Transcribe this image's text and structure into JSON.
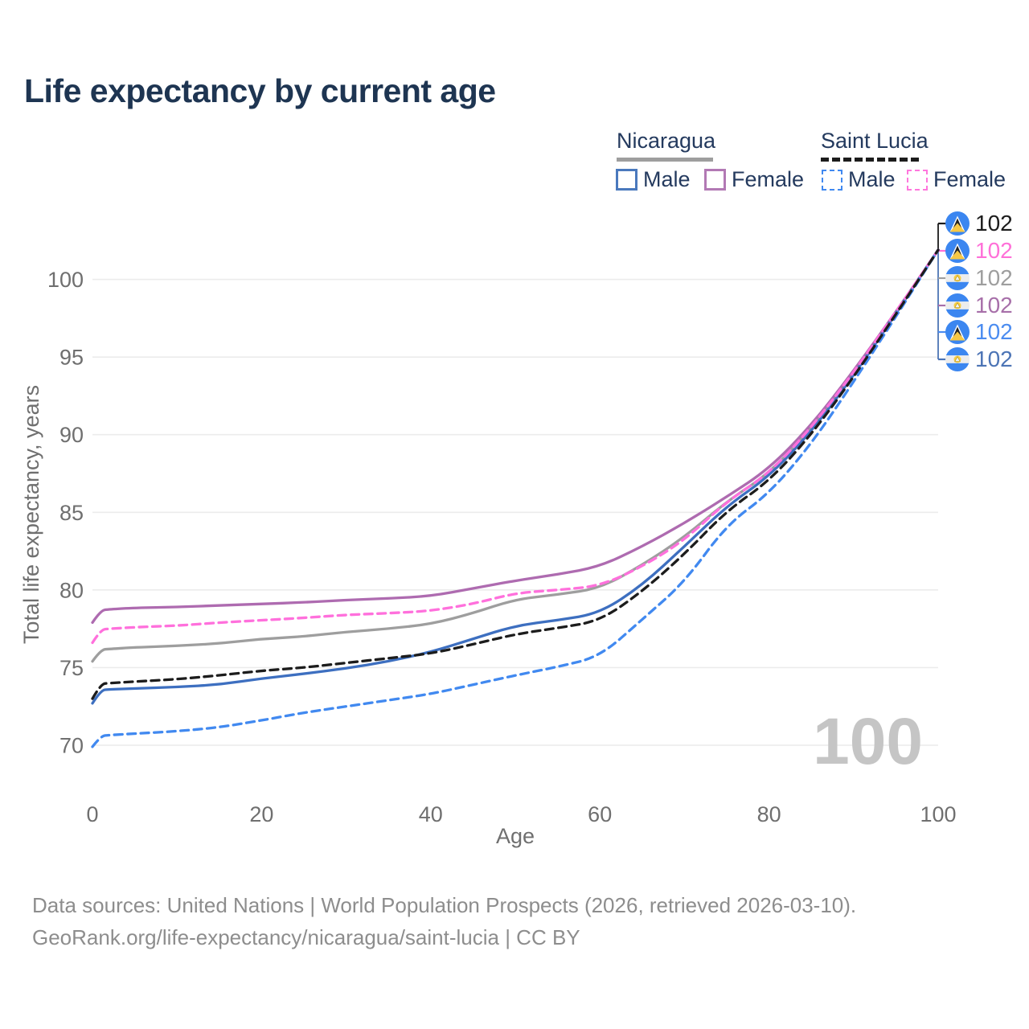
{
  "page": {
    "title": "Life expectancy by current age"
  },
  "legend": {
    "groups": [
      {
        "label": "Nicaragua"
      },
      {
        "label": "Saint Lucia"
      }
    ],
    "items": [
      {
        "label": "Male"
      },
      {
        "label": "Female"
      },
      {
        "label": "Male"
      },
      {
        "label": "Female"
      }
    ]
  },
  "end_labels": [
    {
      "value": "102",
      "flag": "saint-lucia",
      "color": "#1c1c1c"
    },
    {
      "value": "102",
      "flag": "saint-lucia",
      "color": "#ff70d8"
    },
    {
      "value": "102",
      "flag": "nicaragua",
      "color": "#9e9e9e"
    },
    {
      "value": "102",
      "flag": "nicaragua",
      "color": "#a76fa9"
    },
    {
      "value": "102",
      "flag": "saint-lucia",
      "color": "#4b8cf0"
    },
    {
      "value": "102",
      "flag": "nicaragua",
      "color": "#4c74b5"
    }
  ],
  "watermark": "100",
  "caption": {
    "line1": "Data sources: United Nations | World Population Prospects (2026, retrieved 2026-03-10).",
    "line2": "GeoRank.org/life-expectancy/nicaragua/saint-lucia | CC BY"
  },
  "chart_data": {
    "type": "line",
    "title": "Life expectancy by current age",
    "xlabel": "Age",
    "ylabel": "Total life expectancy, years",
    "xlim": [
      0,
      100
    ],
    "ylim": [
      69.5,
      102.5
    ],
    "xticks": [
      0,
      20,
      40,
      60,
      80,
      100
    ],
    "yticks": [
      70,
      75,
      80,
      85,
      90,
      95,
      100
    ],
    "grid": "horizontal",
    "legend_position": "top-right",
    "x": [
      0,
      1,
      2,
      5,
      10,
      15,
      20,
      25,
      30,
      35,
      40,
      45,
      50,
      55,
      60,
      65,
      70,
      75,
      80,
      85,
      90,
      95,
      100
    ],
    "series": [
      {
        "name": "Nicaragua",
        "sex": "both",
        "style": "solid",
        "color": "#9e9e9e",
        "values": [
          75.4,
          76.15,
          76.2,
          76.3,
          76.4,
          76.55,
          76.85,
          77.0,
          77.3,
          77.5,
          77.8,
          78.5,
          79.4,
          79.7,
          80.1,
          81.6,
          83.4,
          85.7,
          87.5,
          90.4,
          93.9,
          97.85,
          101.9
        ]
      },
      {
        "name": "Saint Lucia",
        "sex": "both",
        "style": "dashed",
        "color": "#1c1c1c",
        "values": [
          73.0,
          73.95,
          74.0,
          74.1,
          74.25,
          74.5,
          74.8,
          75.0,
          75.3,
          75.6,
          75.9,
          76.5,
          77.15,
          77.55,
          78.0,
          79.9,
          82.3,
          85.1,
          87.0,
          90.0,
          93.7,
          97.75,
          101.9
        ]
      },
      {
        "name": "Nicaragua Male",
        "sex": "male",
        "style": "solid",
        "color": "#3d6fc0",
        "values": [
          72.7,
          73.55,
          73.6,
          73.65,
          73.75,
          73.9,
          74.3,
          74.6,
          74.95,
          75.4,
          76.0,
          76.85,
          77.7,
          78.05,
          78.5,
          80.3,
          82.8,
          85.4,
          87.3,
          90.2,
          93.8,
          97.8,
          101.9
        ]
      },
      {
        "name": "Nicaragua Female",
        "sex": "female",
        "style": "solid",
        "color": "#ae6bb0",
        "values": [
          77.9,
          78.7,
          78.75,
          78.85,
          78.9,
          79.0,
          79.1,
          79.2,
          79.35,
          79.45,
          79.6,
          80.1,
          80.6,
          81.0,
          81.5,
          82.8,
          84.3,
          86.0,
          87.8,
          90.6,
          94.1,
          97.9,
          101.9
        ]
      },
      {
        "name": "Saint Lucia Male",
        "sex": "male",
        "style": "dashed",
        "color": "#4189f0",
        "values": [
          69.9,
          70.6,
          70.65,
          70.75,
          70.9,
          71.15,
          71.6,
          72.1,
          72.5,
          72.9,
          73.3,
          73.9,
          74.5,
          75.05,
          75.7,
          78.1,
          80.5,
          84.2,
          86.2,
          89.4,
          93.4,
          97.6,
          101.9
        ]
      },
      {
        "name": "Saint Lucia Female",
        "sex": "female",
        "style": "dashed",
        "color": "#ff70dc",
        "values": [
          76.6,
          77.45,
          77.5,
          77.6,
          77.7,
          77.9,
          78.05,
          78.2,
          78.4,
          78.5,
          78.65,
          79.1,
          79.8,
          80.0,
          80.25,
          81.5,
          83.2,
          85.7,
          87.5,
          90.45,
          94.0,
          97.9,
          101.9
        ]
      }
    ]
  }
}
